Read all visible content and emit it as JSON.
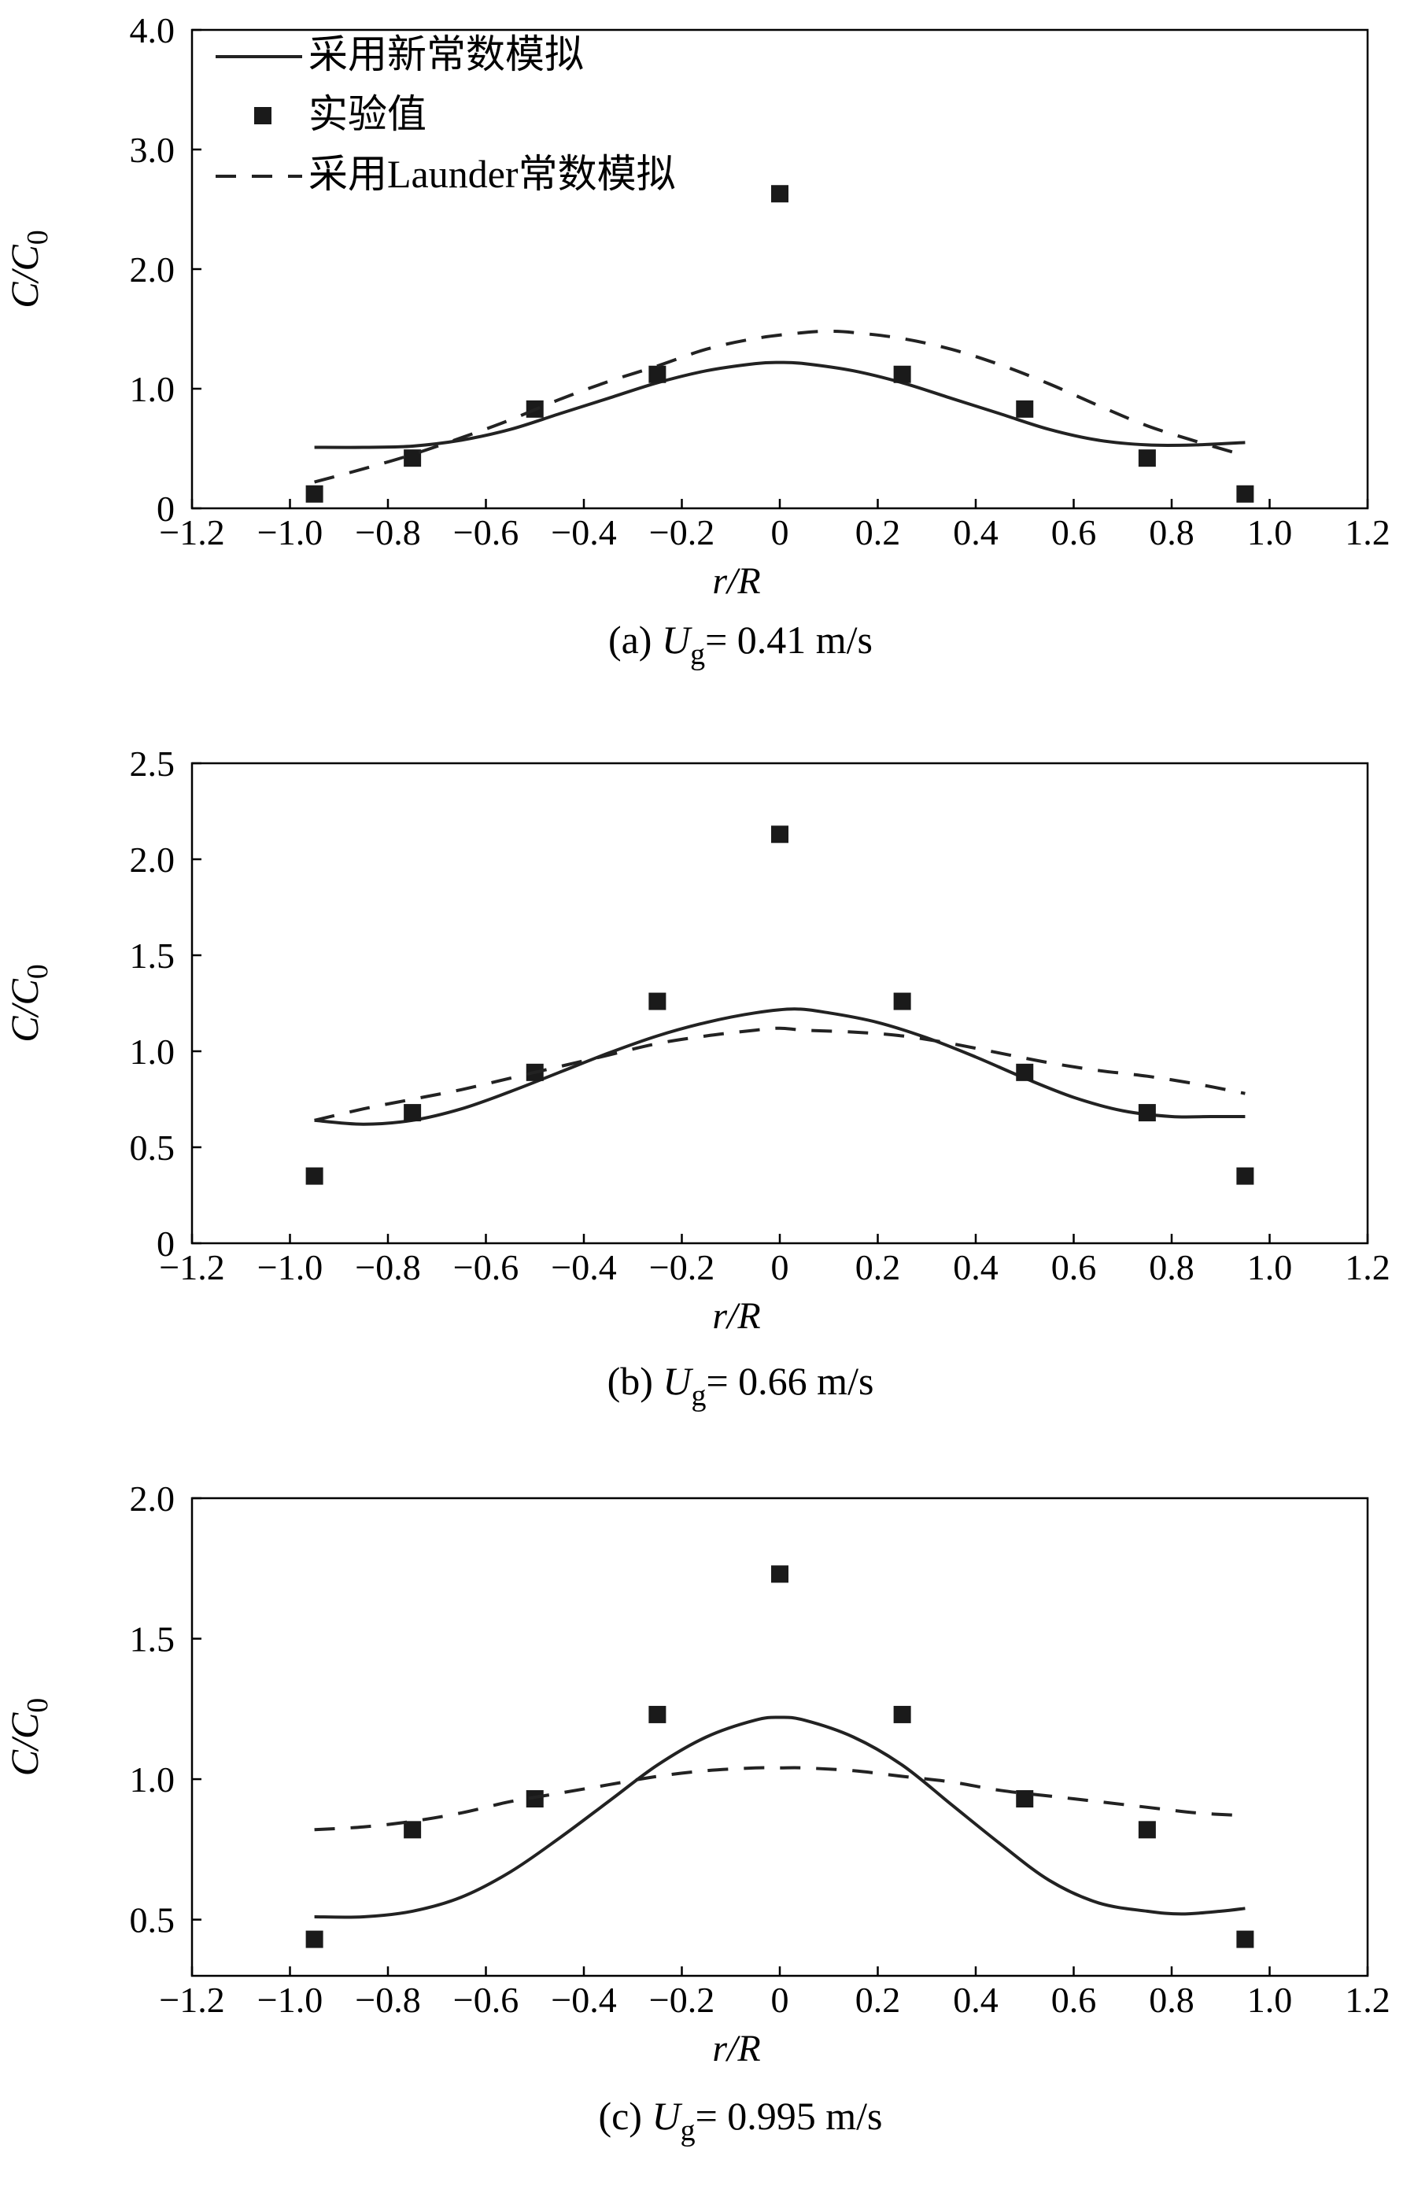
{
  "chart_data": [
    {
      "type": "line",
      "caption": {
        "prefix": "(a)",
        "sym": "U",
        "sub": "g",
        "value": "= 0.41 m/s"
      },
      "xlabel": "r/R",
      "ylabel": "C/C0",
      "xlim": [
        -1.2,
        1.2
      ],
      "ylim": [
        0,
        4.0
      ],
      "xticks": [
        "−1.2",
        "−1.0",
        "−0.8",
        "−0.6",
        "−0.4",
        "−0.2",
        "0",
        "0.2",
        "0.4",
        "0.6",
        "0.8",
        "1.0",
        "1.2"
      ],
      "xtick_values": [
        -1.2,
        -1.0,
        -0.8,
        -0.6,
        -0.4,
        -0.2,
        0,
        0.2,
        0.4,
        0.6,
        0.8,
        1.0,
        1.2
      ],
      "yticks": [
        "0",
        "1.0",
        "2.0",
        "3.0",
        "4.0"
      ],
      "ytick_values": [
        0,
        1.0,
        2.0,
        3.0,
        4.0
      ],
      "legend": [
        "采用新常数模拟",
        "实验值",
        "采用Launder常数模拟"
      ],
      "legend_position": "top-left",
      "series": [
        {
          "name": "采用新常数模拟",
          "style": "solid",
          "x": [
            -0.95,
            -0.85,
            -0.75,
            -0.65,
            -0.55,
            -0.45,
            -0.35,
            -0.25,
            -0.15,
            -0.05,
            0,
            0.05,
            0.15,
            0.25,
            0.35,
            0.45,
            0.55,
            0.65,
            0.75,
            0.85,
            0.95
          ],
          "y": [
            0.51,
            0.51,
            0.52,
            0.57,
            0.66,
            0.79,
            0.92,
            1.05,
            1.15,
            1.21,
            1.22,
            1.21,
            1.15,
            1.05,
            0.92,
            0.79,
            0.66,
            0.57,
            0.53,
            0.53,
            0.55
          ]
        },
        {
          "name": "实验值",
          "style": "marker",
          "x": [
            -0.95,
            -0.75,
            -0.5,
            -0.25,
            0,
            0.25,
            0.5,
            0.75,
            0.95
          ],
          "y": [
            0.12,
            0.42,
            0.83,
            1.12,
            2.63,
            1.12,
            0.83,
            0.42,
            0.12
          ]
        },
        {
          "name": "采用Launder常数模拟",
          "style": "dashed",
          "x": [
            -0.95,
            -0.85,
            -0.75,
            -0.65,
            -0.55,
            -0.45,
            -0.35,
            -0.25,
            -0.15,
            -0.05,
            0.05,
            0.1,
            0.15,
            0.25,
            0.35,
            0.45,
            0.55,
            0.65,
            0.75,
            0.85,
            0.95
          ],
          "y": [
            0.22,
            0.33,
            0.45,
            0.59,
            0.74,
            0.91,
            1.06,
            1.19,
            1.33,
            1.42,
            1.47,
            1.48,
            1.47,
            1.42,
            1.33,
            1.2,
            1.04,
            0.86,
            0.69,
            0.56,
            0.44
          ]
        }
      ]
    },
    {
      "type": "line",
      "caption": {
        "prefix": "(b)",
        "sym": "U",
        "sub": "g",
        "value": "= 0.66 m/s"
      },
      "xlabel": "r/R",
      "ylabel": "C/C0",
      "xlim": [
        -1.2,
        1.2
      ],
      "ylim": [
        0,
        2.5
      ],
      "xticks": [
        "−1.2",
        "−1.0",
        "−0.8",
        "−0.6",
        "−0.4",
        "−0.2",
        "0",
        "0.2",
        "0.4",
        "0.6",
        "0.8",
        "1.0",
        "1.2"
      ],
      "xtick_values": [
        -1.2,
        -1.0,
        -0.8,
        -0.6,
        -0.4,
        -0.2,
        0,
        0.2,
        0.4,
        0.6,
        0.8,
        1.0,
        1.2
      ],
      "yticks": [
        "0",
        "0.5",
        "1.0",
        "1.5",
        "2.0",
        "2.5"
      ],
      "ytick_values": [
        0,
        0.5,
        1.0,
        1.5,
        2.0,
        2.5
      ],
      "series": [
        {
          "name": "采用新常数模拟",
          "style": "solid",
          "x": [
            -0.95,
            -0.85,
            -0.75,
            -0.65,
            -0.55,
            -0.45,
            -0.35,
            -0.25,
            -0.15,
            -0.05,
            0.03,
            0.1,
            0.2,
            0.3,
            0.4,
            0.5,
            0.6,
            0.7,
            0.8,
            0.88,
            0.95
          ],
          "y": [
            0.64,
            0.62,
            0.64,
            0.7,
            0.79,
            0.89,
            0.99,
            1.08,
            1.15,
            1.2,
            1.22,
            1.2,
            1.15,
            1.07,
            0.97,
            0.86,
            0.76,
            0.69,
            0.66,
            0.66,
            0.66
          ]
        },
        {
          "name": "实验值",
          "style": "marker",
          "x": [
            -0.95,
            -0.75,
            -0.5,
            -0.25,
            0,
            0.25,
            0.5,
            0.75,
            0.95
          ],
          "y": [
            0.35,
            0.68,
            0.89,
            1.26,
            2.13,
            1.26,
            0.89,
            0.68,
            0.35
          ]
        },
        {
          "name": "采用Launder常数模拟",
          "style": "dashed",
          "x": [
            -0.95,
            -0.85,
            -0.75,
            -0.65,
            -0.55,
            -0.45,
            -0.35,
            -0.25,
            -0.15,
            -0.05,
            0,
            0.05,
            0.15,
            0.25,
            0.35,
            0.45,
            0.55,
            0.65,
            0.75,
            0.85,
            0.95
          ],
          "y": [
            0.64,
            0.7,
            0.75,
            0.8,
            0.86,
            0.92,
            0.98,
            1.04,
            1.08,
            1.11,
            1.12,
            1.11,
            1.1,
            1.08,
            1.04,
            0.99,
            0.94,
            0.9,
            0.87,
            0.83,
            0.78
          ]
        }
      ]
    },
    {
      "type": "line",
      "caption": {
        "prefix": "(c)",
        "sym": "U",
        "sub": "g",
        "value": "= 0.995 m/s"
      },
      "xlabel": "r/R",
      "ylabel": "C/C0",
      "xlim": [
        -1.2,
        1.2
      ],
      "ylim": [
        0.3,
        2.0
      ],
      "xticks": [
        "−1.2",
        "−1.0",
        "−0.8",
        "−0.6",
        "−0.4",
        "−0.2",
        "0",
        "0.2",
        "0.4",
        "0.6",
        "0.8",
        "1.0",
        "1.2"
      ],
      "xtick_values": [
        -1.2,
        -1.0,
        -0.8,
        -0.6,
        -0.4,
        -0.2,
        0,
        0.2,
        0.4,
        0.6,
        0.8,
        1.0,
        1.2
      ],
      "yticks": [
        "0.5",
        "1.0",
        "1.5",
        "2.0"
      ],
      "ytick_values": [
        0.5,
        1.0,
        1.5,
        2.0
      ],
      "series": [
        {
          "name": "采用新常数模拟",
          "style": "solid",
          "x": [
            -0.95,
            -0.85,
            -0.75,
            -0.65,
            -0.55,
            -0.45,
            -0.35,
            -0.25,
            -0.15,
            -0.05,
            0,
            0.05,
            0.15,
            0.25,
            0.35,
            0.45,
            0.55,
            0.65,
            0.75,
            0.82,
            0.9,
            0.95
          ],
          "y": [
            0.51,
            0.51,
            0.53,
            0.58,
            0.67,
            0.79,
            0.92,
            1.05,
            1.15,
            1.21,
            1.22,
            1.21,
            1.15,
            1.05,
            0.91,
            0.77,
            0.64,
            0.56,
            0.53,
            0.52,
            0.53,
            0.54
          ]
        },
        {
          "name": "实验值",
          "style": "marker",
          "x": [
            -0.95,
            -0.75,
            -0.5,
            -0.25,
            0,
            0.25,
            0.5,
            0.75,
            0.95
          ],
          "y": [
            0.43,
            0.82,
            0.93,
            1.23,
            1.73,
            1.23,
            0.93,
            0.82,
            0.43
          ]
        },
        {
          "name": "采用Launder常数模拟",
          "style": "dashed",
          "x": [
            -0.95,
            -0.85,
            -0.75,
            -0.65,
            -0.55,
            -0.45,
            -0.35,
            -0.25,
            -0.15,
            -0.05,
            0,
            0.05,
            0.15,
            0.25,
            0.35,
            0.45,
            0.55,
            0.65,
            0.75,
            0.85,
            0.95
          ],
          "y": [
            0.82,
            0.83,
            0.85,
            0.88,
            0.92,
            0.95,
            0.98,
            1.01,
            1.03,
            1.04,
            1.04,
            1.04,
            1.03,
            1.01,
            0.99,
            0.96,
            0.94,
            0.92,
            0.9,
            0.88,
            0.87
          ]
        }
      ]
    }
  ]
}
